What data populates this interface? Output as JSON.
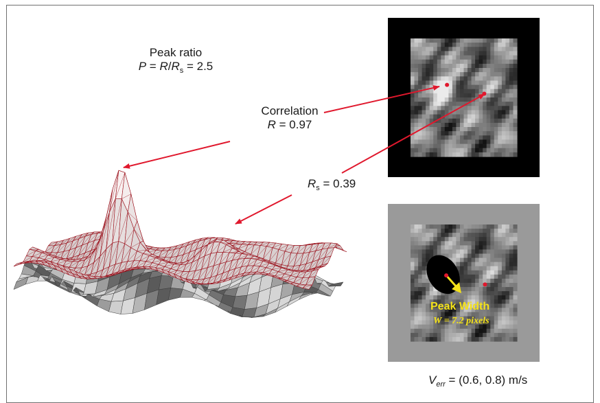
{
  "peak_ratio": {
    "title": "Peak ratio",
    "var_P": "P",
    "eq": " = ",
    "var_R": "R",
    "slash": "/",
    "var_Rs": "R",
    "sub_s": "s",
    "value": " = 2.5"
  },
  "correlation": {
    "title": "Correlation",
    "var_R": "R",
    "value": " = 0.97"
  },
  "secondary": {
    "var_R": "R",
    "sub_s": "s",
    "value": " = 0.39"
  },
  "peak_width": {
    "title": "Peak Width",
    "equation": "W = 7.2 pixels"
  },
  "velocity_error": {
    "var_V": "V",
    "sub_err": "err",
    "value": " = (0.6, 0.8) m/s"
  },
  "colors": {
    "arrow": "#e0182d",
    "mesh_line": "#9a0f1a",
    "marker": "#e0182d",
    "annotation_yellow": "#f4e21a",
    "panel_border_top": "#000000",
    "panel_border_bottom": "#9a9a9a"
  },
  "panels": [
    {
      "name": "correlation-map",
      "border": "black",
      "markers": 2
    },
    {
      "name": "masked-correlation-map",
      "border": "gray",
      "markers": 2,
      "mask": "peak-region"
    }
  ]
}
